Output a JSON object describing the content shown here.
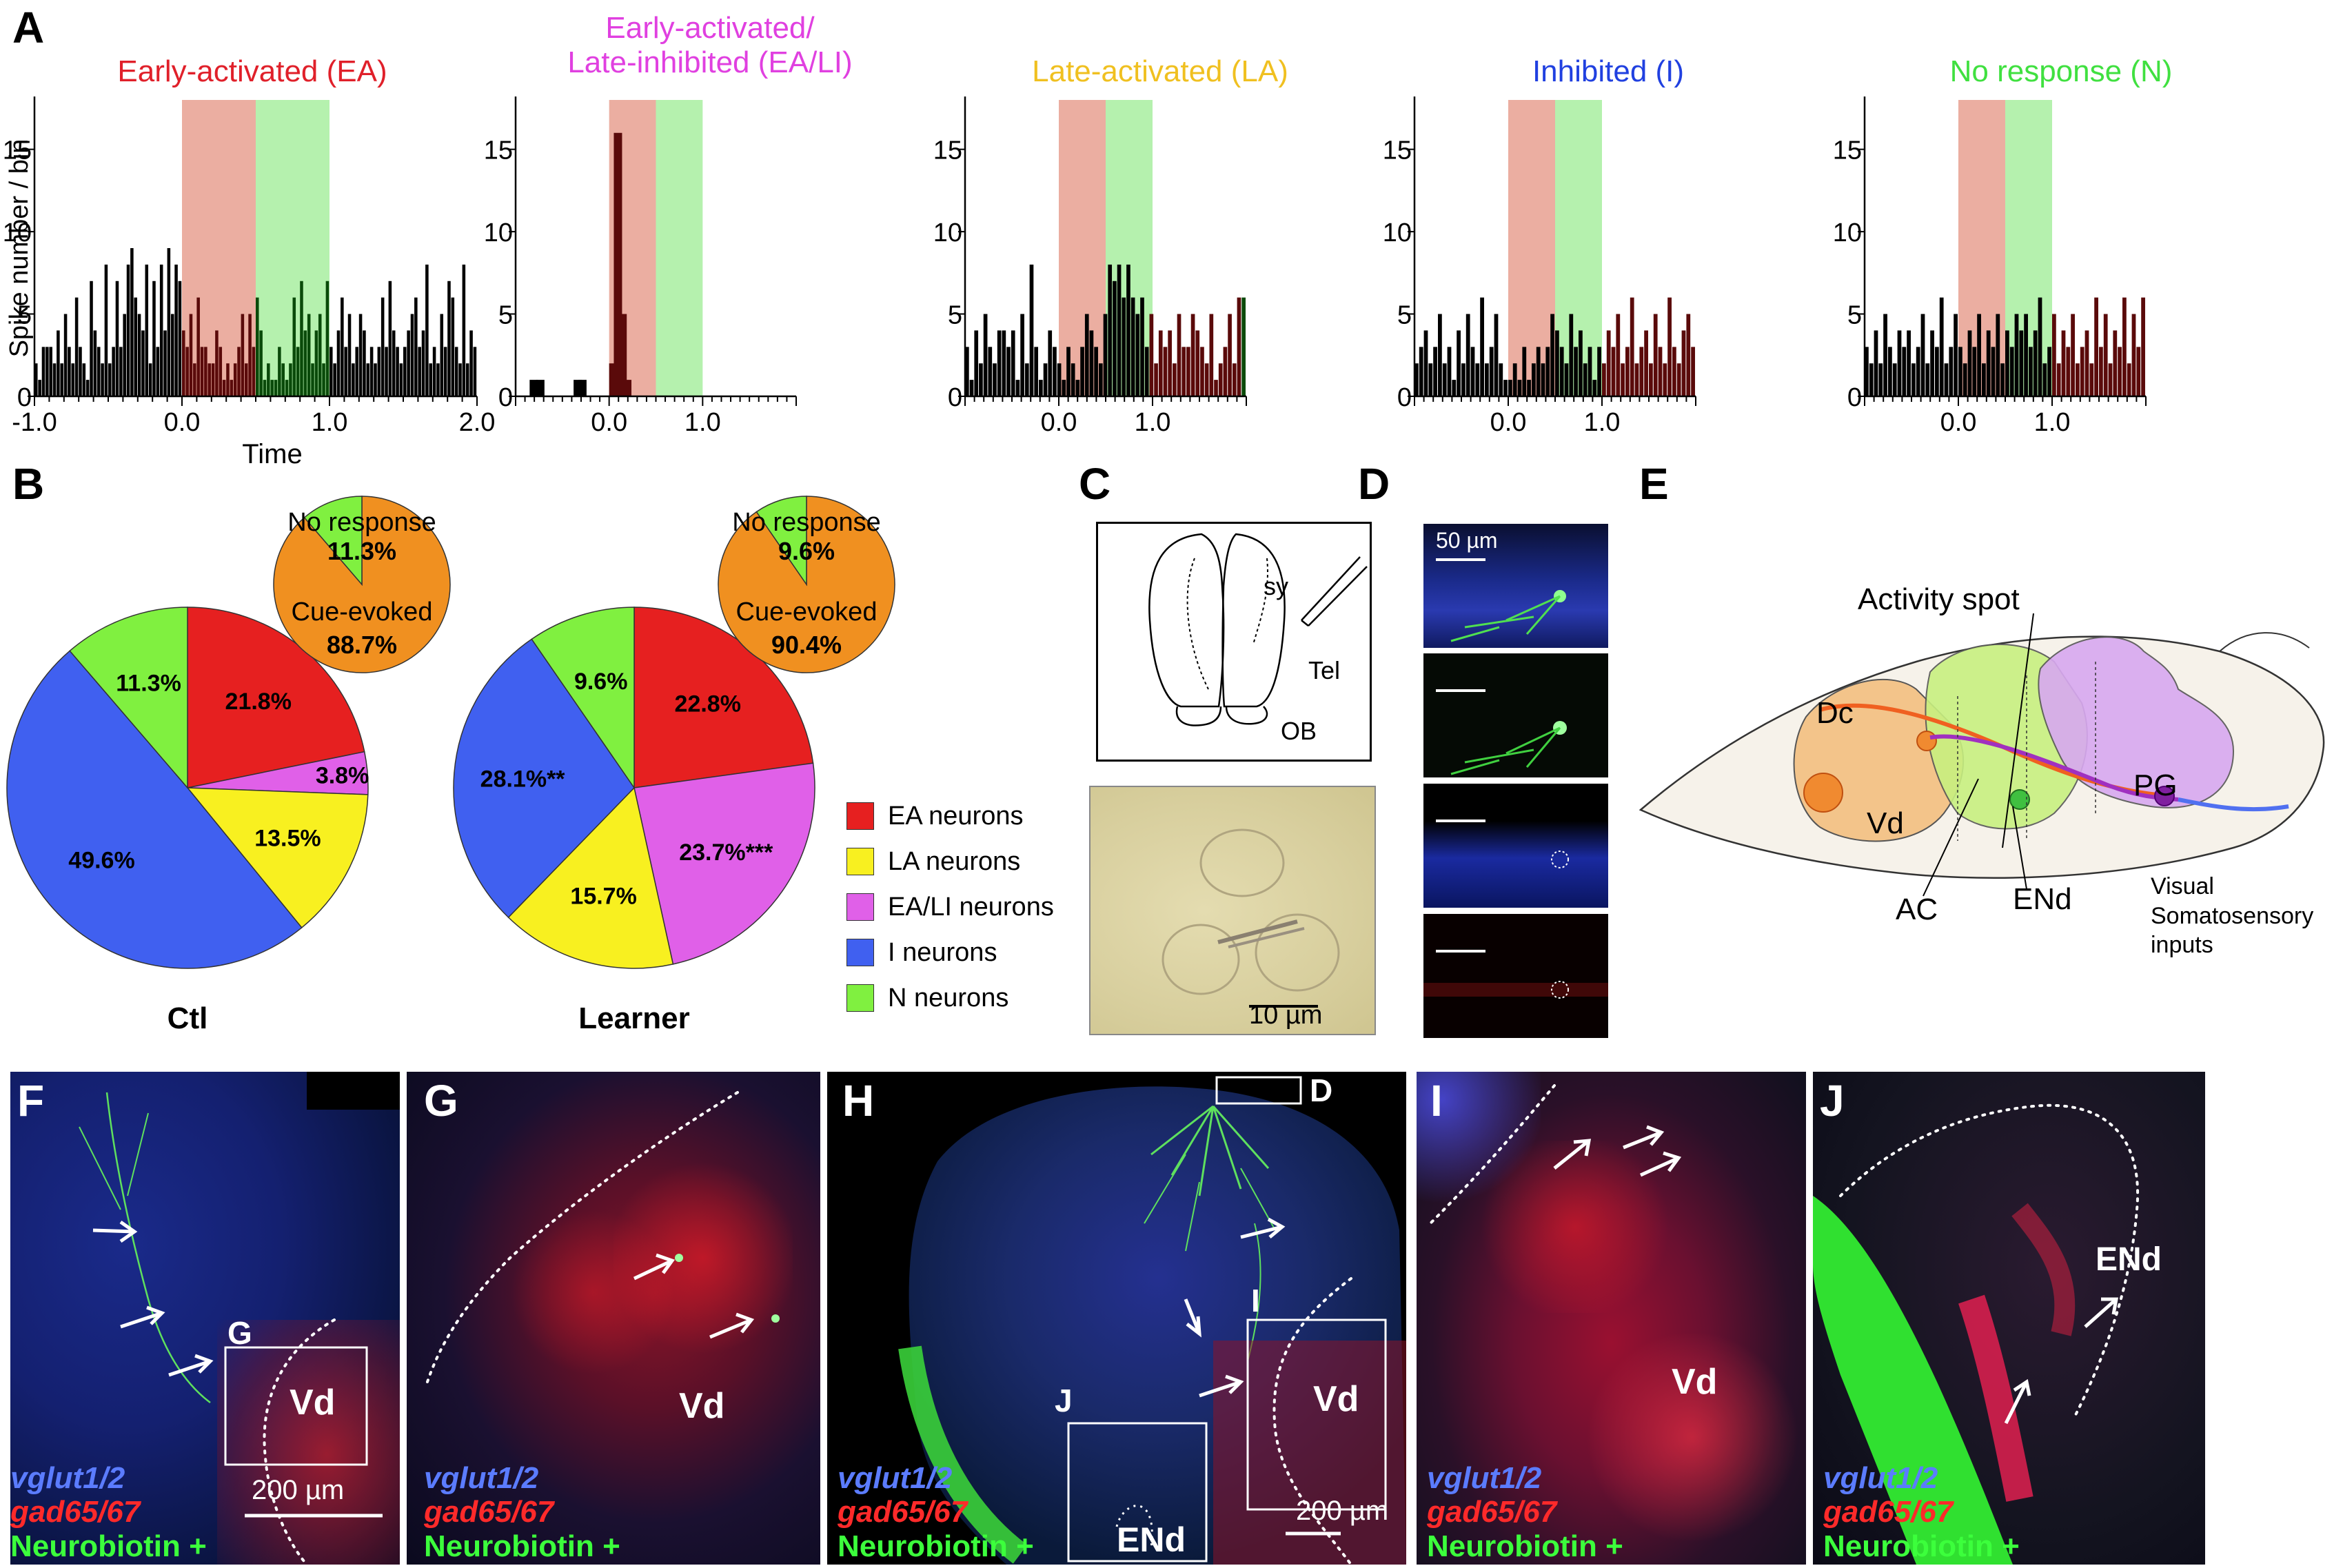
{
  "panelA": {
    "label": "A",
    "ylabel": "Spike number / bin",
    "xlabel": "Time",
    "shade_early": "#e8a090",
    "shade_late": "#a8eea0",
    "yticks": [
      "0",
      "5",
      "10",
      "15"
    ],
    "chart_data": [
      {
        "type": "bar",
        "title": "Early-activated (EA)",
        "title_color": "#e0202a",
        "xticks": [
          "-1.0",
          "0.0",
          "1.0",
          "2.0"
        ],
        "xlim": [
          -1.0,
          2.0
        ],
        "ylim": [
          0,
          18
        ],
        "x_start": -1.0,
        "bin_width": 0.05,
        "values": [
          2,
          1,
          3,
          3,
          3,
          2,
          4,
          2,
          5,
          3,
          2,
          6,
          3,
          2,
          1,
          7,
          4,
          3,
          2,
          8,
          2,
          3,
          7,
          3,
          5,
          8,
          9,
          6,
          5,
          4,
          8,
          2,
          7,
          3,
          8,
          4,
          9,
          5,
          8,
          7,
          4,
          3,
          5,
          2,
          6,
          3,
          3,
          2,
          2,
          4,
          3,
          1,
          2,
          1,
          2,
          3,
          5,
          2,
          5,
          3,
          6,
          4,
          1,
          2,
          1,
          1,
          3,
          2,
          1,
          2,
          6,
          3,
          7,
          4,
          5,
          2,
          4,
          5,
          2,
          7,
          3,
          2,
          4,
          6,
          3,
          5,
          2,
          3,
          5,
          4,
          2,
          3,
          2,
          3,
          6,
          3,
          7,
          4,
          3,
          2,
          3,
          4,
          5,
          6,
          3,
          4,
          8,
          2,
          3,
          2,
          5,
          3,
          7,
          6,
          3,
          2,
          8,
          2,
          4,
          3
        ],
        "shaded_early": [
          0.0,
          0.5
        ],
        "shaded_late": [
          0.5,
          1.0
        ]
      },
      {
        "type": "bar",
        "title": "Early-activated/\nLate-inhibited (EA/LI)",
        "title_color": "#e040e0",
        "xticks": [
          "0.0",
          "1.0"
        ],
        "xlim": [
          -1.0,
          2.0
        ],
        "ylim": [
          0,
          18
        ],
        "bars": [
          [
            -0.85,
            1
          ],
          [
            -0.78,
            1
          ],
          [
            -0.38,
            1
          ],
          [
            -0.33,
            1
          ],
          [
            0.0,
            2
          ],
          [
            0.05,
            16
          ],
          [
            0.1,
            5
          ],
          [
            0.15,
            1
          ]
        ],
        "shaded_early": [
          0.0,
          0.5
        ],
        "shaded_late": [
          0.5,
          1.0
        ]
      },
      {
        "type": "bar",
        "title": "Late-activated (LA)",
        "title_color": "#f0c020",
        "xticks": [
          "0.0",
          "1.0"
        ],
        "xlim": [
          -1.0,
          2.0
        ],
        "ylim": [
          0,
          18
        ],
        "x_start": -1.0,
        "bin_width": 0.05,
        "values": [
          3,
          1,
          4,
          2,
          5,
          3,
          2,
          4,
          4,
          3,
          4,
          1,
          5,
          2,
          8,
          3,
          1,
          2,
          4,
          3,
          2,
          1,
          3,
          2,
          1,
          3,
          5,
          4,
          3,
          2,
          5,
          8,
          7,
          8,
          6,
          8,
          6,
          5,
          6,
          3,
          5,
          2,
          4,
          3,
          4,
          2,
          5,
          3,
          3,
          5,
          4,
          3,
          2,
          5,
          1,
          2,
          3,
          5,
          2,
          6,
          6
        ],
        "shaded_early": [
          0.0,
          0.5
        ],
        "shaded_late": [
          0.5,
          1.0
        ]
      },
      {
        "type": "bar",
        "title": "Inhibited (I)",
        "title_color": "#2040e0",
        "xticks": [
          "0.0",
          "1.0"
        ],
        "xlim": [
          -1.0,
          2.0
        ],
        "ylim": [
          0,
          18
        ],
        "x_start": -1.0,
        "bin_width": 0.05,
        "values": [
          2,
          3,
          4,
          2,
          3,
          5,
          2,
          3,
          1,
          4,
          2,
          5,
          3,
          2,
          6,
          2,
          3,
          5,
          2,
          1,
          1,
          2,
          1,
          3,
          1,
          2,
          3,
          2,
          3,
          5,
          4,
          3,
          2,
          5,
          3,
          4,
          2,
          3,
          1,
          3,
          2,
          4,
          3,
          5,
          2,
          3,
          6,
          2,
          3,
          4,
          2,
          5,
          3,
          2,
          6,
          3,
          2,
          4,
          5,
          3
        ],
        "shaded_early": [
          0.0,
          0.5
        ],
        "shaded_late": [
          0.5,
          1.0
        ]
      },
      {
        "type": "bar",
        "title": "No response (N)",
        "title_color": "#40e040",
        "xticks": [
          "0.0",
          "1.0"
        ],
        "xlim": [
          -1.0,
          2.0
        ],
        "ylim": [
          0,
          18
        ],
        "x_start": -1.0,
        "bin_width": 0.05,
        "values": [
          3,
          2,
          4,
          2,
          5,
          3,
          2,
          4,
          3,
          4,
          2,
          3,
          5,
          2,
          4,
          3,
          6,
          2,
          3,
          5,
          3,
          2,
          4,
          3,
          5,
          2,
          4,
          3,
          5,
          2,
          4,
          3,
          5,
          4,
          5,
          3,
          4,
          6,
          2,
          3,
          5,
          2,
          4,
          3,
          5,
          2,
          3,
          4,
          2,
          6,
          3,
          5,
          2,
          4,
          3,
          6,
          2,
          5,
          3,
          6
        ],
        "shaded_early": [
          0.0,
          0.5
        ],
        "shaded_late": [
          0.5,
          1.0
        ]
      }
    ]
  },
  "panelB": {
    "label": "B",
    "chart_data": [
      {
        "type": "pie",
        "title": "Ctl",
        "slices": [
          {
            "name": "EA neurons",
            "value": 21.8,
            "label": "21.8%",
            "color": "#e62020"
          },
          {
            "name": "EA/LI neurons",
            "value": 3.8,
            "label": "3.8%",
            "color": "#e060e8"
          },
          {
            "name": "LA neurons",
            "value": 13.5,
            "label": "13.5%",
            "color": "#f8f020"
          },
          {
            "name": "I neurons",
            "value": 49.6,
            "label": "49.6%",
            "color": "#4060f0"
          },
          {
            "name": "N neurons",
            "value": 11.3,
            "label": "11.3%",
            "color": "#80f040"
          }
        ]
      },
      {
        "type": "pie",
        "title": "",
        "slices": [
          {
            "name": "Cue-evoked",
            "value": 88.7,
            "label": "Cue-evoked\n88.7%",
            "color": "#f09020"
          },
          {
            "name": "No response",
            "value": 11.3,
            "label": "No response\n11.3%",
            "color": "#80f040"
          }
        ]
      },
      {
        "type": "pie",
        "title": "Learner",
        "slices": [
          {
            "name": "EA neurons",
            "value": 22.8,
            "label": "22.8%",
            "color": "#e62020"
          },
          {
            "name": "EA/LI neurons",
            "value": 23.7,
            "label": "23.7%***",
            "color": "#e060e8"
          },
          {
            "name": "LA neurons",
            "value": 15.7,
            "label": "15.7%",
            "color": "#f8f020"
          },
          {
            "name": "I neurons",
            "value": 28.1,
            "label": "28.1%**",
            "color": "#4060f0"
          },
          {
            "name": "N neurons",
            "value": 9.6,
            "label": "9.6%",
            "color": "#80f040"
          }
        ]
      },
      {
        "type": "pie",
        "title": "",
        "slices": [
          {
            "name": "Cue-evoked",
            "value": 90.4,
            "label": "Cue-evoked\n90.4%",
            "color": "#f09020"
          },
          {
            "name": "No response",
            "value": 9.6,
            "label": "No response\n9.6%",
            "color": "#80f040"
          }
        ]
      }
    ],
    "legend": [
      {
        "label": "EA neurons",
        "color": "#e62020"
      },
      {
        "label": "LA neurons",
        "color": "#f8f020"
      },
      {
        "label": "EA/LI neurons",
        "color": "#e060e8"
      },
      {
        "label": "I neurons",
        "color": "#4060f0"
      },
      {
        "label": "N neurons",
        "color": "#80f040"
      }
    ]
  },
  "panelC": {
    "label": "C",
    "sy": "sy",
    "tel": "Tel",
    "ob": "OB",
    "scale": "10 µm"
  },
  "panelD": {
    "label": "D",
    "scale": "50 µm"
  },
  "panelE": {
    "label": "E",
    "activity_spot": "Activity spot",
    "dc": "Dc",
    "vd": "Vd",
    "pg": "PG",
    "ac": "AC",
    "end": "ENd",
    "inputs": "Visual\nSomatosensory\ninputs"
  },
  "stain": {
    "vglut": "vglut1/2",
    "gad": "gad65/67",
    "neuro": "Neurobiotin +"
  },
  "panelF": {
    "label": "F",
    "g": "G",
    "vd": "Vd",
    "scale": "200 µm"
  },
  "panelG": {
    "label": "G",
    "vd": "Vd"
  },
  "panelH": {
    "label": "H",
    "d": "D",
    "i": "I",
    "j": "J",
    "vd": "Vd",
    "end": "ENd",
    "scale": "200 µm"
  },
  "panelI": {
    "label": "I",
    "vd": "Vd"
  },
  "panelJ": {
    "label": "J",
    "end": "ENd"
  }
}
